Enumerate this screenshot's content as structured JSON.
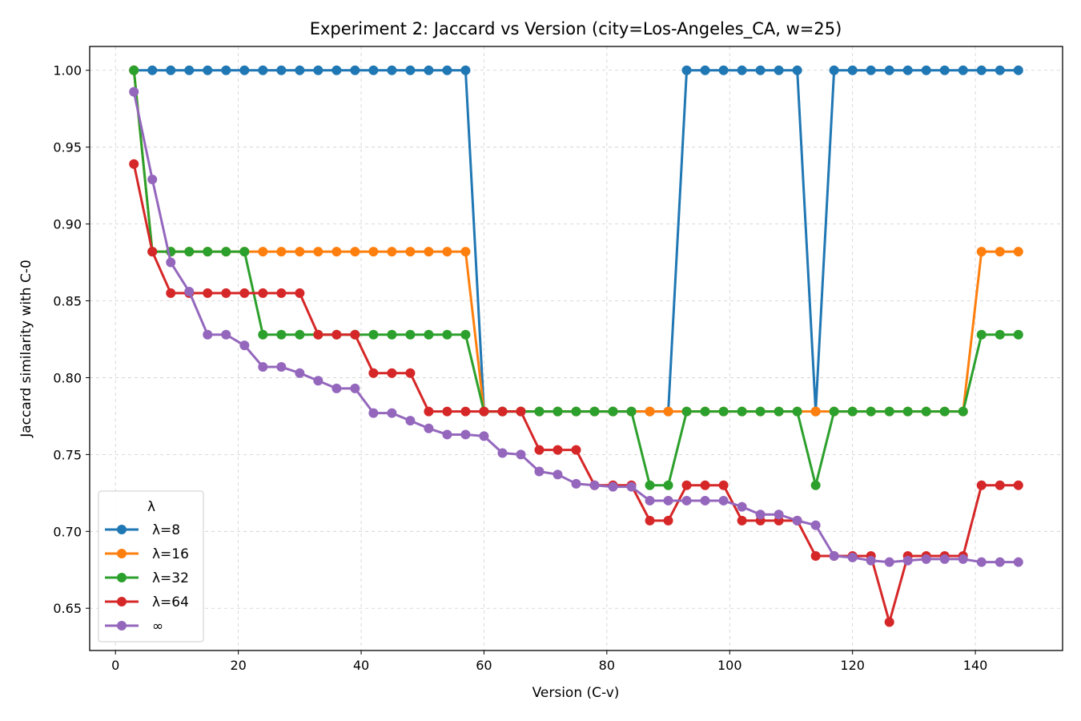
{
  "chart_data": {
    "type": "line",
    "title": "Experiment 2: Jaccard vs Version  (city=Los-Angeles_CA, w=25)",
    "xlabel": "Version (C-v)",
    "ylabel": "Jaccard similarity with C-0",
    "xlim": [
      -4.2,
      154.2
    ],
    "ylim": [
      0.6225,
      1.0155
    ],
    "xticks": [
      0,
      20,
      40,
      60,
      80,
      100,
      120,
      140
    ],
    "yticks": [
      0.65,
      0.7,
      0.75,
      0.8,
      0.85,
      0.9,
      0.95,
      1.0
    ],
    "xtick_labels": [
      "0",
      "20",
      "40",
      "60",
      "80",
      "100",
      "120",
      "140"
    ],
    "ytick_labels": [
      "0.65",
      "0.70",
      "0.75",
      "0.80",
      "0.85",
      "0.90",
      "0.95",
      "1.00"
    ],
    "grid": true,
    "legend": {
      "title": "λ",
      "placement": "lower-left"
    },
    "x": [
      3,
      6,
      9,
      12,
      15,
      18,
      21,
      24,
      27,
      30,
      33,
      36,
      39,
      42,
      45,
      48,
      51,
      54,
      57,
      60,
      63,
      66,
      69,
      72,
      75,
      78,
      81,
      84,
      87,
      90,
      93,
      96,
      99,
      102,
      105,
      108,
      111,
      114,
      117,
      120,
      123,
      126,
      129,
      132,
      135,
      138,
      141,
      144,
      147
    ],
    "series": [
      {
        "name": "λ=8",
        "color": "#1f77b4",
        "values": [
          1.0,
          1.0,
          1.0,
          1.0,
          1.0,
          1.0,
          1.0,
          1.0,
          1.0,
          1.0,
          1.0,
          1.0,
          1.0,
          1.0,
          1.0,
          1.0,
          1.0,
          1.0,
          1.0,
          0.778,
          0.778,
          0.778,
          0.778,
          0.778,
          0.778,
          0.778,
          0.778,
          0.778,
          0.778,
          0.778,
          1.0,
          1.0,
          1.0,
          1.0,
          1.0,
          1.0,
          1.0,
          0.778,
          1.0,
          1.0,
          1.0,
          1.0,
          1.0,
          1.0,
          1.0,
          1.0,
          1.0,
          1.0,
          1.0
        ]
      },
      {
        "name": "λ=16",
        "color": "#ff7f0e",
        "values": [
          1.0,
          0.882,
          0.882,
          0.882,
          0.882,
          0.882,
          0.882,
          0.882,
          0.882,
          0.882,
          0.882,
          0.882,
          0.882,
          0.882,
          0.882,
          0.882,
          0.882,
          0.882,
          0.882,
          0.778,
          0.778,
          0.778,
          0.778,
          0.778,
          0.778,
          0.778,
          0.778,
          0.778,
          0.778,
          0.778,
          0.778,
          0.778,
          0.778,
          0.778,
          0.778,
          0.778,
          0.778,
          0.778,
          0.778,
          0.778,
          0.778,
          0.778,
          0.778,
          0.778,
          0.778,
          0.778,
          0.882,
          0.882,
          0.882
        ]
      },
      {
        "name": "λ=32",
        "color": "#2ca02c",
        "values": [
          1.0,
          0.882,
          0.882,
          0.882,
          0.882,
          0.882,
          0.882,
          0.828,
          0.828,
          0.828,
          0.828,
          0.828,
          0.828,
          0.828,
          0.828,
          0.828,
          0.828,
          0.828,
          0.828,
          0.778,
          0.778,
          0.778,
          0.778,
          0.778,
          0.778,
          0.778,
          0.778,
          0.778,
          0.73,
          0.73,
          0.778,
          0.778,
          0.778,
          0.778,
          0.778,
          0.778,
          0.778,
          0.73,
          0.778,
          0.778,
          0.778,
          0.778,
          0.778,
          0.778,
          0.778,
          0.778,
          0.828,
          0.828,
          0.828
        ]
      },
      {
        "name": "λ=64",
        "color": "#d62728",
        "values": [
          0.939,
          0.882,
          0.855,
          0.855,
          0.855,
          0.855,
          0.855,
          0.855,
          0.855,
          0.855,
          0.828,
          0.828,
          0.828,
          0.803,
          0.803,
          0.803,
          0.778,
          0.778,
          0.778,
          0.778,
          0.778,
          0.778,
          0.753,
          0.753,
          0.753,
          0.73,
          0.73,
          0.73,
          0.707,
          0.707,
          0.73,
          0.73,
          0.73,
          0.707,
          0.707,
          0.707,
          0.707,
          0.684,
          0.684,
          0.684,
          0.684,
          0.641,
          0.684,
          0.684,
          0.684,
          0.684,
          0.73,
          0.73,
          0.73
        ]
      },
      {
        "name": "∞",
        "color": "#9467bd",
        "values": [
          0.986,
          0.929,
          0.875,
          0.856,
          0.828,
          0.828,
          0.821,
          0.807,
          0.807,
          0.803,
          0.798,
          0.793,
          0.793,
          0.777,
          0.777,
          0.772,
          0.767,
          0.763,
          0.763,
          0.762,
          0.751,
          0.75,
          0.739,
          0.737,
          0.731,
          0.73,
          0.729,
          0.729,
          0.72,
          0.72,
          0.72,
          0.72,
          0.72,
          0.716,
          0.711,
          0.711,
          0.707,
          0.704,
          0.684,
          0.683,
          0.681,
          0.68,
          0.681,
          0.682,
          0.682,
          0.682,
          0.68,
          0.68,
          0.68
        ]
      }
    ]
  }
}
